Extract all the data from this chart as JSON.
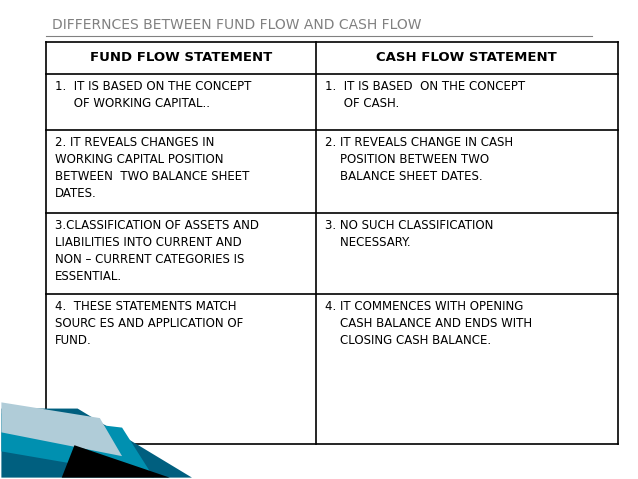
{
  "title": "DIFFERNCES BETWEEN FUND FLOW AND CASH FLOW",
  "title_color": "#808080",
  "background_color": "#ffffff",
  "col1_header": "FUND FLOW STATEMENT",
  "col2_header": "CASH FLOW STATEMENT",
  "col1_rows": [
    "1.  IT IS BASED ON THE CONCEPT\n     OF WORKING CAPITAL..",
    "2. IT REVEALS CHANGES IN\nWORKING CAPITAL POSITION\nBETWEEN  TWO BALANCE SHEET\nDATES.",
    "3.CLASSIFICATION OF ASSETS AND\nLIABILITIES INTO CURRENT AND\nNON – CURRENT CATEGORIES IS\nESSENTIAL.",
    "4.  THESE STATEMENTS MATCH\nSOURC ES AND APPLICATION OF\nFUND."
  ],
  "col2_rows": [
    "1.  IT IS BASED  ON THE CONCEPT\n     OF CASH.",
    "2. IT REVEALS CHANGE IN CASH\n    POSITION BETWEEN TWO\n    BALANCE SHEET DATES.",
    "3. NO SUCH CLASSIFICATION\n    NECESSARY.",
    "4. IT COMMENCES WITH OPENING\n    CASH BALANCE AND ENDS WITH\n    CLOSING CASH BALANCE."
  ],
  "table_border_color": "#000000",
  "text_color": "#000000",
  "header_fontsize": 9.5,
  "cell_fontsize": 8.5,
  "title_fontsize": 10,
  "decoration_colors": [
    "#005f7f",
    "#0090b0",
    "#b0ccd8",
    "#000000"
  ]
}
